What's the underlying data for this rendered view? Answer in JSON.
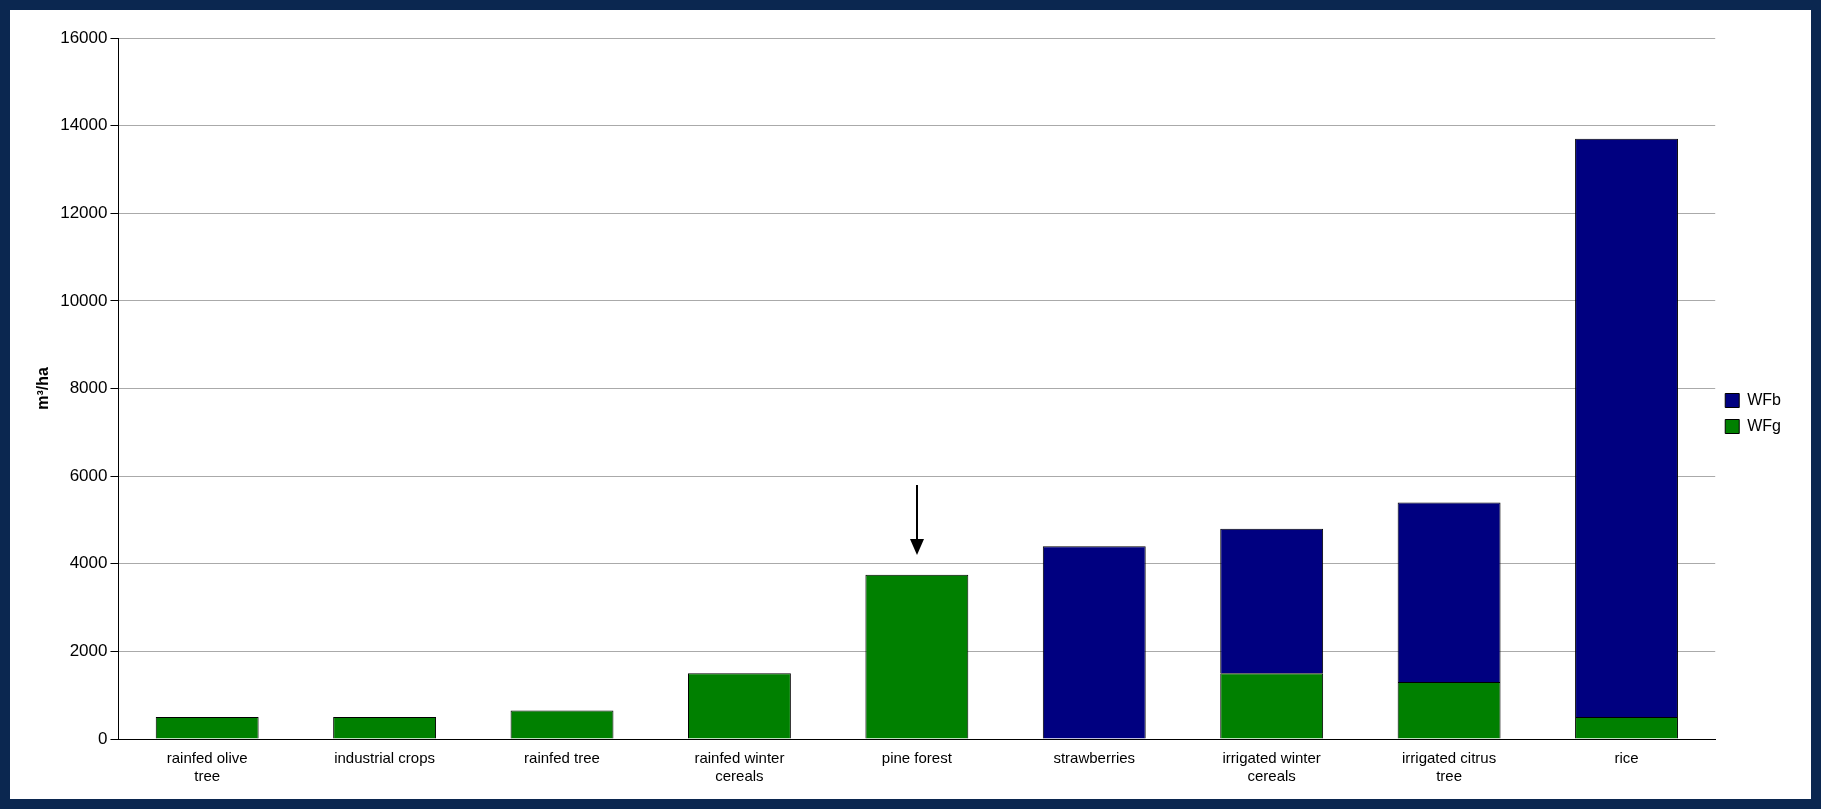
{
  "chart_data": {
    "type": "bar",
    "stacked": true,
    "ylabel": "m³/ha",
    "categories": [
      "rainfed olive tree",
      "industrial crops",
      "rainfed tree",
      "rainfed winter cereals",
      "pine forest",
      "strawberries",
      "irrigated winter cereals",
      "irrigated citrus tree",
      "rice"
    ],
    "series": [
      {
        "name": "WFg",
        "color": "#008000",
        "values": [
          500,
          500,
          650,
          1500,
          3750,
          0,
          1500,
          1300,
          500
        ]
      },
      {
        "name": "WFb",
        "color": "#000080",
        "values": [
          0,
          0,
          0,
          0,
          0,
          4400,
          3300,
          4100,
          13200
        ]
      }
    ],
    "ylim": [
      0,
      16000
    ],
    "yticks": [
      0,
      2000,
      4000,
      6000,
      8000,
      10000,
      12000,
      14000,
      16000
    ],
    "grid": "y",
    "legend": "right"
  }
}
